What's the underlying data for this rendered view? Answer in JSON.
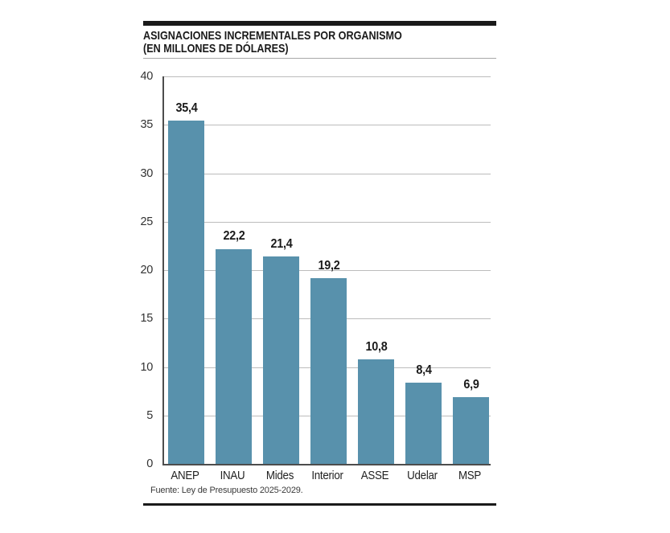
{
  "header": {
    "title_line1": "ASIGNACIONES INCREMENTALES POR ORGANISMO",
    "title_line2": "(EN MILLONES DE DÓLARES)"
  },
  "chart_data": {
    "type": "bar",
    "title": "ASIGNACIONES INCREMENTALES POR ORGANISMO (EN MILLONES DE DÓLARES)",
    "categories": [
      "ANEP",
      "INAU",
      "Mides",
      "Interior",
      "ASSE",
      "Udelar",
      "MSP"
    ],
    "values": [
      35.4,
      22.2,
      21.4,
      19.2,
      10.8,
      8.4,
      6.9
    ],
    "value_labels": [
      "35,4",
      "22,2",
      "21,4",
      "19,2",
      "10,8",
      "8,4",
      "6,9"
    ],
    "xlabel": "",
    "ylabel": "",
    "ylim": [
      0,
      40
    ],
    "ytick_interval": 5,
    "yticks": [
      "0",
      "5",
      "10",
      "15",
      "20",
      "25",
      "30",
      "35",
      "40"
    ],
    "grid": true,
    "legend": false,
    "bar_color": "#5891ac",
    "gridline_color": "#bcbcbc",
    "axis_color": "#4d4d4d",
    "text_color": "#1a1a1a"
  },
  "footer": {
    "source": "Fuente: Ley de Presupuesto 2025-2029."
  }
}
